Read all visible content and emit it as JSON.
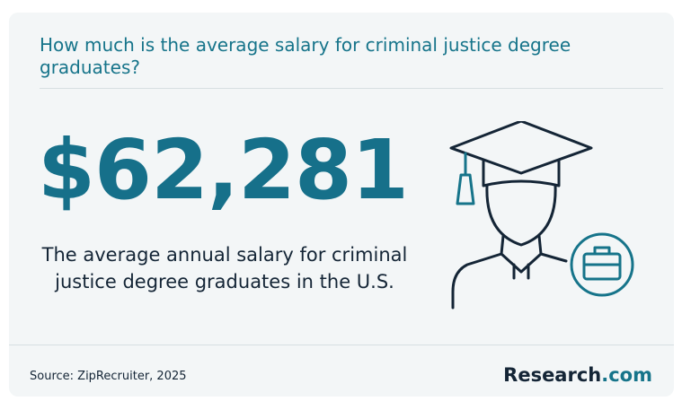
{
  "header": {
    "title": "How much is the average salary for criminal justice degree graduates?"
  },
  "stat": {
    "value": "$62,281",
    "description": "The average annual salary for criminal justice degree graduates in the U.S."
  },
  "footer": {
    "source": "Source: ZipRecruiter, 2025",
    "brand": "Research",
    "brand_suffix": ".com"
  }
}
